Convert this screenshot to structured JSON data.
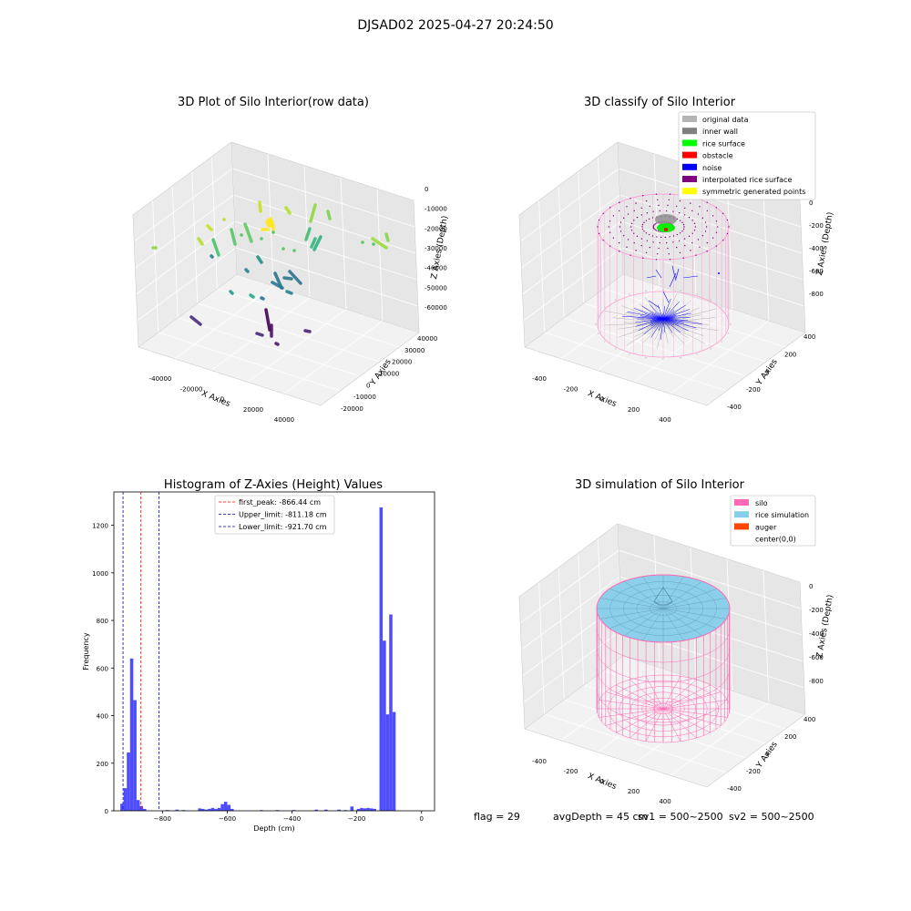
{
  "suptitle": "DJSAD02 2025-04-27 20:24:50",
  "status_line": {
    "flag": "flag = 29",
    "avg": "avgDepth = 45 cm",
    "sv1": "sv1 = 500~2500",
    "sv2": "sv2 = 500~2500"
  },
  "chart_data": [
    {
      "type": "scatter3d",
      "title": "3D Plot of Silo Interior(row data)",
      "xlabel": "X Axies",
      "ylabel": "Y Axies",
      "zlabel": "Z Axies (Depth)",
      "xticks": [
        "-40000",
        "-20000",
        "0",
        "20000",
        "40000"
      ],
      "yticks": [
        "-20000",
        "-10000",
        "0",
        "10000",
        "20000",
        "30000",
        "40000"
      ],
      "zticks": [
        "0",
        "-10000",
        "-20000",
        "-30000",
        "-40000",
        "-50000",
        "-60000"
      ],
      "colormap": "viridis"
    },
    {
      "type": "scatter3d",
      "title": "3D classify of Silo Interior",
      "xlabel": "X Axies",
      "ylabel": "Y Axies",
      "zlabel": "Z Axies (Depth)",
      "xticks": [
        "-400",
        "-200",
        "0",
        "200",
        "400"
      ],
      "yticks": [
        "-400",
        "-200",
        "0",
        "200",
        "400"
      ],
      "zticks": [
        "0",
        "-200",
        "-400",
        "-600",
        "-800"
      ],
      "legend": [
        {
          "label": "original data",
          "color": "#b4b4b4"
        },
        {
          "label": "inner wall",
          "color": "#808080"
        },
        {
          "label": "rice surface",
          "color": "#00ff00"
        },
        {
          "label": "obstacle",
          "color": "#ff0000"
        },
        {
          "label": "noise",
          "color": "#0000ff"
        },
        {
          "label": "interpolated rice surface",
          "color": "#800080"
        },
        {
          "label": "symmetric generated points",
          "color": "#ffff00"
        }
      ]
    },
    {
      "type": "bar",
      "title": "Histogram of Z-Axies (Height) Values",
      "xlabel": "Depth (cm)",
      "ylabel": "Frequency",
      "xlim": [
        -950,
        40
      ],
      "ylim": [
        0,
        1340
      ],
      "xticks": [
        -800,
        -600,
        -400,
        -200,
        0
      ],
      "yticks": [
        0,
        200,
        400,
        600,
        800,
        1000,
        1200
      ],
      "bar_color": "#4d4dff",
      "bins": [
        [
          -930,
          -920,
          30
        ],
        [
          -920,
          -910,
          95
        ],
        [
          -910,
          -900,
          245
        ],
        [
          -900,
          -890,
          640
        ],
        [
          -890,
          -880,
          465
        ],
        [
          -880,
          -870,
          45
        ],
        [
          -870,
          -860,
          20
        ],
        [
          -860,
          -850,
          8
        ],
        [
          -790,
          -780,
          3
        ],
        [
          -760,
          -750,
          5
        ],
        [
          -740,
          -730,
          3
        ],
        [
          -690,
          -680,
          10
        ],
        [
          -680,
          -670,
          8
        ],
        [
          -670,
          -660,
          5
        ],
        [
          -660,
          -650,
          8
        ],
        [
          -650,
          -640,
          12
        ],
        [
          -640,
          -630,
          8
        ],
        [
          -630,
          -620,
          12
        ],
        [
          -620,
          -610,
          28
        ],
        [
          -610,
          -600,
          38
        ],
        [
          -600,
          -590,
          25
        ],
        [
          -590,
          -580,
          8
        ],
        [
          -500,
          -490,
          3
        ],
        [
          -450,
          -440,
          3
        ],
        [
          -400,
          -390,
          3
        ],
        [
          -330,
          -320,
          5
        ],
        [
          -300,
          -290,
          5
        ],
        [
          -260,
          -250,
          5
        ],
        [
          -240,
          -230,
          3
        ],
        [
          -220,
          -210,
          18
        ],
        [
          -200,
          -190,
          8
        ],
        [
          -190,
          -180,
          12
        ],
        [
          -180,
          -170,
          10
        ],
        [
          -170,
          -160,
          12
        ],
        [
          -160,
          -150,
          10
        ],
        [
          -150,
          -140,
          8
        ],
        [
          -130,
          -120,
          1275
        ],
        [
          -120,
          -110,
          715
        ],
        [
          -110,
          -100,
          405
        ],
        [
          -100,
          -90,
          825
        ],
        [
          -90,
          -80,
          415
        ]
      ],
      "lines": [
        {
          "label": "first_peak: -866.44 cm",
          "value": -866.44,
          "color": "#ff0000"
        },
        {
          "label": "Upper_limit: -811.18 cm",
          "value": -811.18,
          "color": "#0000aa"
        },
        {
          "label": "Lower_limit: -921.70 cm",
          "value": -921.7,
          "color": "#0000aa"
        }
      ],
      "legend_position": "upper center"
    },
    {
      "type": "surface3d",
      "title": "3D simulation of Silo Interior",
      "xlabel": "X Axies",
      "ylabel": "Y Axies",
      "zlabel": "Z Axies (Depth)",
      "xticks": [
        "-400",
        "-200",
        "0",
        "200",
        "400"
      ],
      "yticks": [
        "-400",
        "-200",
        "0",
        "200",
        "400"
      ],
      "zticks": [
        "0",
        "-200",
        "-400",
        "-600",
        "-800"
      ],
      "legend": [
        {
          "label": "silo",
          "color": "#ff69b4"
        },
        {
          "label": "rice simulation",
          "color": "#87ceeb"
        },
        {
          "label": "auger",
          "color": "#ff4500"
        },
        {
          "label": "center(0,0)",
          "color": ""
        }
      ]
    }
  ]
}
